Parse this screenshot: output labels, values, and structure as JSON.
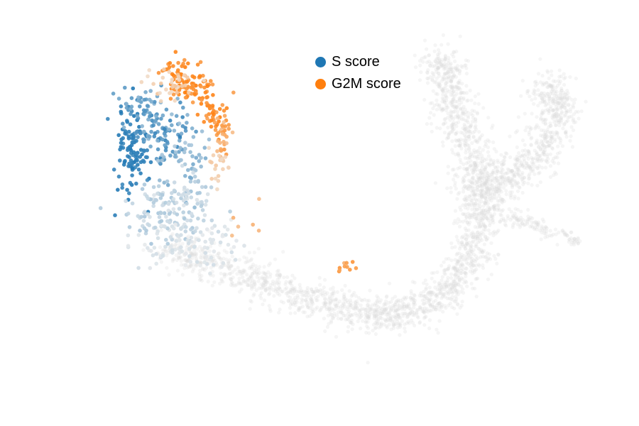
{
  "chart_data": {
    "type": "scatter",
    "title": "",
    "xlabel": "",
    "ylabel": "",
    "axes_visible": false,
    "grid": false,
    "legend_position": "top-center",
    "background_color": "#dcdcdc",
    "series": [
      {
        "name": "S score",
        "color": "#1f77b4",
        "clusters": [
          {
            "center": [
              0.205,
              0.35
            ],
            "spread": [
              0.012,
              0.05
            ],
            "n": 110,
            "intensity": [
              0.85,
              1.0
            ]
          },
          {
            "center": [
              0.26,
              0.32
            ],
            "spread": [
              0.02,
              0.04
            ],
            "n": 70,
            "intensity": [
              0.6,
              0.95
            ]
          },
          {
            "center": [
              0.23,
              0.26
            ],
            "spread": [
              0.018,
              0.035
            ],
            "n": 60,
            "intensity": [
              0.45,
              0.8
            ]
          },
          {
            "center": [
              0.29,
              0.38
            ],
            "spread": [
              0.02,
              0.05
            ],
            "n": 60,
            "intensity": [
              0.3,
              0.6
            ]
          },
          {
            "center": [
              0.27,
              0.5
            ],
            "spread": [
              0.035,
              0.04
            ],
            "n": 160,
            "intensity": [
              0.08,
              0.35
            ]
          },
          {
            "center": [
              0.3,
              0.58
            ],
            "spread": [
              0.04,
              0.025
            ],
            "n": 90,
            "intensity": [
              0.03,
              0.15
            ]
          }
        ]
      },
      {
        "name": "G2M score",
        "color": "#ff7f0e",
        "clusters": [
          {
            "center": [
              0.28,
              0.17
            ],
            "spread": [
              0.015,
              0.02
            ],
            "n": 45,
            "intensity": [
              0.75,
              1.0
            ]
          },
          {
            "center": [
              0.3,
              0.21
            ],
            "spread": [
              0.02,
              0.015
            ],
            "n": 55,
            "intensity": [
              0.7,
              1.0
            ]
          },
          {
            "center": [
              0.335,
              0.27
            ],
            "spread": [
              0.01,
              0.02
            ],
            "n": 35,
            "intensity": [
              0.7,
              1.0
            ]
          },
          {
            "center": [
              0.35,
              0.32
            ],
            "spread": [
              0.008,
              0.025
            ],
            "n": 30,
            "intensity": [
              0.4,
              0.8
            ]
          },
          {
            "center": [
              0.265,
              0.2
            ],
            "spread": [
              0.02,
              0.02
            ],
            "n": 35,
            "intensity": [
              0.15,
              0.4
            ]
          },
          {
            "center": [
              0.345,
              0.39
            ],
            "spread": [
              0.008,
              0.025
            ],
            "n": 20,
            "intensity": [
              0.15,
              0.35
            ]
          },
          {
            "center": [
              0.535,
              0.63
            ],
            "spread": [
              0.008,
              0.008
            ],
            "n": 10,
            "intensity": [
              0.55,
              0.9
            ]
          },
          {
            "center": [
              0.39,
              0.53
            ],
            "spread": [
              0.015,
              0.03
            ],
            "n": 6,
            "intensity": [
              0.4,
              0.7
            ]
          }
        ]
      },
      {
        "name": "",
        "color": "#dcdcdc",
        "path": [
          [
            0.27,
            0.58
          ],
          [
            0.34,
            0.62
          ],
          [
            0.42,
            0.67
          ],
          [
            0.5,
            0.71
          ],
          [
            0.58,
            0.74
          ],
          [
            0.64,
            0.73
          ],
          [
            0.7,
            0.68
          ],
          [
            0.74,
            0.6
          ],
          [
            0.755,
            0.5
          ],
          [
            0.75,
            0.4
          ],
          [
            0.72,
            0.3
          ],
          [
            0.7,
            0.2
          ],
          [
            0.69,
            0.13
          ]
        ],
        "branch": [
          [
            0.73,
            0.45
          ],
          [
            0.8,
            0.42
          ],
          [
            0.85,
            0.35
          ],
          [
            0.87,
            0.25
          ],
          [
            0.86,
            0.2
          ]
        ],
        "tail": [
          [
            0.79,
            0.5
          ],
          [
            0.84,
            0.53
          ],
          [
            0.91,
            0.57
          ]
        ]
      }
    ]
  }
}
